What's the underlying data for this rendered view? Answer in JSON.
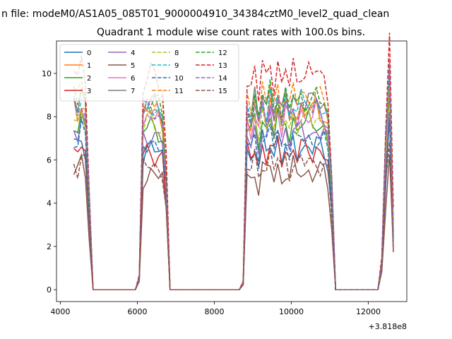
{
  "chart_data": {
    "type": "line",
    "suptitle": "n file: modeM0/AS1A05_085T01_9000004910_34384cztM0_level2_quad_clean",
    "title": "Quadrant 1 module wise count rates with 100.0s bins.",
    "xlabel": "",
    "ylabel": "",
    "x_offset_label": "+3.818e8",
    "xlim": [
      3900,
      13000
    ],
    "ylim": [
      -0.55,
      11.5
    ],
    "xticks": [
      4000,
      6000,
      8000,
      10000,
      12000
    ],
    "yticks": [
      0,
      2,
      4,
      6,
      8,
      10
    ],
    "legend_position": "upper-left",
    "legend_columns": 4,
    "grid": false,
    "segments": [
      {
        "x": [
          4350,
          4450,
          4550,
          4650,
          4750
        ],
        "base": [
          7.3,
          7.0,
          7.6,
          7.1,
          3.5
        ]
      },
      {
        "x": [
          4850,
          4950,
          5050,
          5150,
          5250,
          5350,
          5450,
          5550,
          5650,
          5750,
          5850,
          5950
        ],
        "base": [
          0,
          0,
          0,
          0,
          0,
          0,
          0,
          0,
          0,
          0,
          0,
          0
        ]
      },
      {
        "x": [
          6050,
          6150,
          6250,
          6350,
          6450,
          6550,
          6650,
          6750
        ],
        "base": [
          0.5,
          6.8,
          7.0,
          7.1,
          7.0,
          6.9,
          6.7,
          4.5
        ]
      },
      {
        "x": [
          6850,
          6950,
          7050,
          7150,
          7250,
          7350,
          7450,
          7550,
          7650,
          7750,
          7850,
          7950,
          8050,
          8150,
          8250,
          8350,
          8450,
          8550,
          8650
        ],
        "base": [
          0,
          0,
          0,
          0,
          0,
          0,
          0,
          0,
          0,
          0,
          0,
          0,
          0,
          0,
          0,
          0,
          0,
          0,
          0
        ]
      },
      {
        "x": [
          8750,
          8850,
          8950,
          9050,
          9150,
          9250,
          9350,
          9450,
          9550,
          9650,
          9750,
          9850,
          9950,
          10050,
          10150,
          10250,
          10350,
          10450,
          10550,
          10650,
          10750,
          10850,
          10950,
          11050
        ],
        "base": [
          0.3,
          7.0,
          6.6,
          7.3,
          6.3,
          7.4,
          6.9,
          7.6,
          6.8,
          7.5,
          6.6,
          7.3,
          6.7,
          7.4,
          6.9,
          7.3,
          7.1,
          7.2,
          7.0,
          7.3,
          7.1,
          7.0,
          6.5,
          4.0
        ]
      },
      {
        "x": [
          11150,
          11250,
          11350,
          11450,
          11550,
          11650,
          11750,
          11850,
          11950,
          12050,
          12150,
          12250
        ],
        "base": [
          0,
          0,
          0,
          0,
          0,
          0,
          0,
          0,
          0,
          0,
          0,
          0
        ]
      },
      {
        "x": [
          12350,
          12450,
          12550,
          12650
        ],
        "base": [
          1.1,
          5.5,
          8.5,
          2.3
        ]
      }
    ],
    "series": [
      {
        "name": "0",
        "color": "#1f77b4",
        "dash": "solid",
        "scale": 0.92
      },
      {
        "name": "1",
        "color": "#ff7f0e",
        "dash": "solid",
        "scale": 1.16
      },
      {
        "name": "2",
        "color": "#2ca02c",
        "dash": "solid",
        "scale": 1.07
      },
      {
        "name": "3",
        "color": "#d62728",
        "dash": "solid",
        "scale": 0.9
      },
      {
        "name": "4",
        "color": "#9467bd",
        "dash": "solid",
        "scale": 1.02
      },
      {
        "name": "5",
        "color": "#8c564b",
        "dash": "solid",
        "scale": 0.76
      },
      {
        "name": "6",
        "color": "#e377c2",
        "dash": "solid",
        "scale": 1.13
      },
      {
        "name": "7",
        "color": "#7f7f7f",
        "dash": "solid",
        "scale": 1.22
      },
      {
        "name": "8",
        "color": "#bcbd22",
        "dash": "dashed",
        "scale": 1.1
      },
      {
        "name": "9",
        "color": "#17becf",
        "dash": "dashed",
        "scale": 1.2
      },
      {
        "name": "10",
        "color": "#1f77b4",
        "dash": "dashed",
        "scale": 0.97
      },
      {
        "name": "11",
        "color": "#ff7f0e",
        "dash": "dashed",
        "scale": 1.25
      },
      {
        "name": "12",
        "color": "#2ca02c",
        "dash": "dashed",
        "scale": 1.23
      },
      {
        "name": "13",
        "color": "#d62728",
        "dash": "dashed",
        "scale": 1.4
      },
      {
        "name": "14",
        "color": "#9467bd",
        "dash": "dashed",
        "scale": 1.17
      },
      {
        "name": "15",
        "color": "#8c564b",
        "dash": "dashed",
        "scale": 0.82
      }
    ]
  }
}
